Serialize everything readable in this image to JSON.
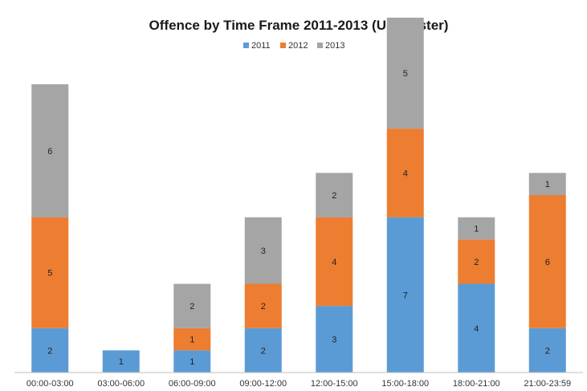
{
  "chart_data": {
    "type": "bar",
    "stacked": true,
    "title": "Offence by Time Frame 2011-2013 (Upminster)",
    "xlabel": "",
    "ylabel": "",
    "ylim": [
      0,
      16
    ],
    "grid": false,
    "legend": "top",
    "categories": [
      "00:00-03:00",
      "03:00-06:00",
      "06:00-09:00",
      "09:00-12:00",
      "12:00-15:00",
      "15:00-18:00",
      "18:00-21:00",
      "21:00-23:59"
    ],
    "series": [
      {
        "name": "2011",
        "color": "#5b9bd5",
        "values": [
          2,
          1,
          1,
          2,
          3,
          7,
          4,
          2
        ]
      },
      {
        "name": "2012",
        "color": "#ed7d31",
        "values": [
          5,
          0,
          1,
          2,
          4,
          4,
          2,
          6
        ]
      },
      {
        "name": "2013",
        "color": "#a5a5a5",
        "values": [
          6,
          0,
          2,
          3,
          2,
          5,
          1,
          1
        ]
      }
    ]
  }
}
